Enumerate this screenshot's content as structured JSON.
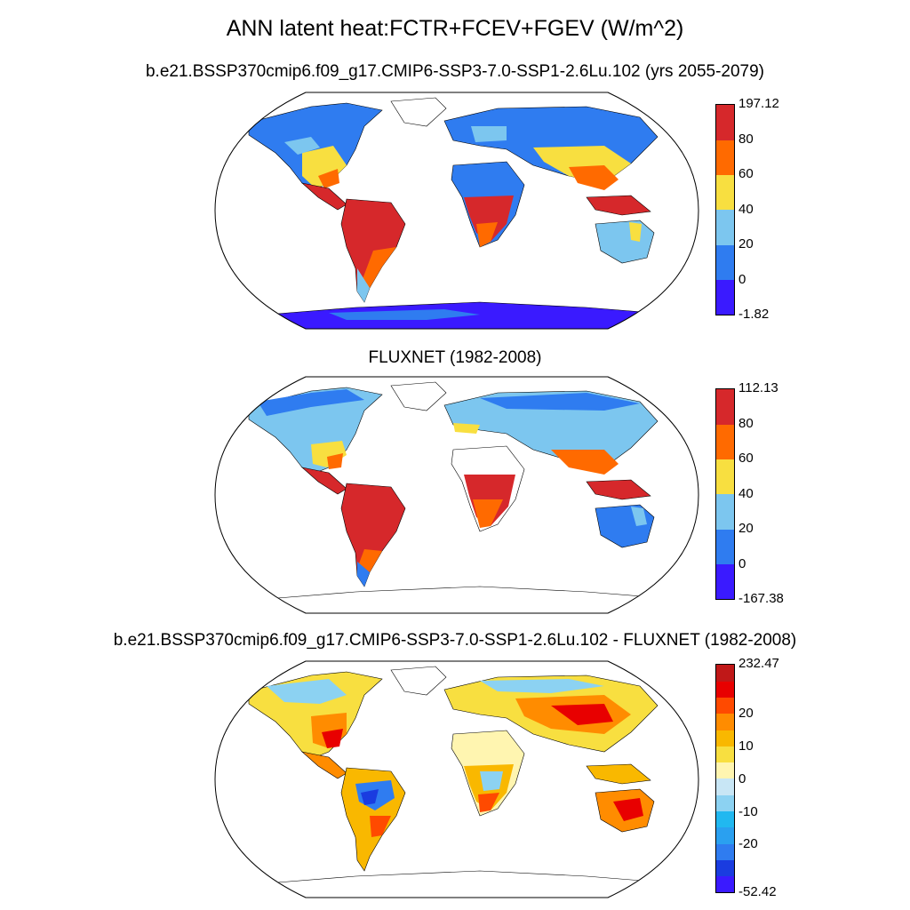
{
  "figure": {
    "title": "ANN latent heat:FCTR+FCEV+FGEV (W/m^2)"
  },
  "panels": [
    {
      "title": "b.e21.BSSP370cmip6.f09_g17.CMIP6-SSP3-7.0-SSP1-2.6Lu.102 (yrs 2055-2079)",
      "colorbar": {
        "colors": [
          "#3a1aff",
          "#2f7cf0",
          "#7cc6ef",
          "#f8df40",
          "#ff6a00",
          "#d6282b"
        ],
        "labels": [
          "197.12",
          "80",
          "60",
          "40",
          "20",
          "0",
          "-1.82"
        ],
        "max": 197.12,
        "min": -1.82,
        "levels": [
          0,
          20,
          40,
          60,
          80
        ]
      },
      "antarctica_color": "#3a1aff"
    },
    {
      "title": "FLUXNET (1982-2008)",
      "colorbar": {
        "colors": [
          "#3a1aff",
          "#2f7cf0",
          "#7cc6ef",
          "#f8df40",
          "#ff6a00",
          "#d6282b"
        ],
        "labels": [
          "112.13",
          "80",
          "60",
          "40",
          "20",
          "0",
          "-167.38"
        ],
        "max": 112.13,
        "min": -167.38,
        "levels": [
          0,
          20,
          40,
          60,
          80
        ]
      },
      "antarctica_color": "#ffffff"
    },
    {
      "title": "b.e21.BSSP370cmip6.f09_g17.CMIP6-SSP3-7.0-SSP1-2.6Lu.102 - FLUXNET (1982-2008)",
      "colorbar": {
        "colors": [
          "#3a1aff",
          "#1a3ce0",
          "#2f7cf0",
          "#2aa0f0",
          "#21b8f0",
          "#8cd2f2",
          "#c8e6f5",
          "#fff5b0",
          "#f8df40",
          "#f9b800",
          "#ff8c00",
          "#ff4a00",
          "#e80000",
          "#c01818"
        ],
        "labels": [
          "232.47",
          "20",
          "10",
          "0",
          "-10",
          "-20",
          "-52.42"
        ],
        "max": 232.47,
        "min": -52.42,
        "levels": [
          -30,
          -25,
          -20,
          -15,
          -10,
          -5,
          -2,
          2,
          5,
          10,
          15,
          20,
          25
        ]
      },
      "antarctica_color": "#ffffff"
    }
  ]
}
